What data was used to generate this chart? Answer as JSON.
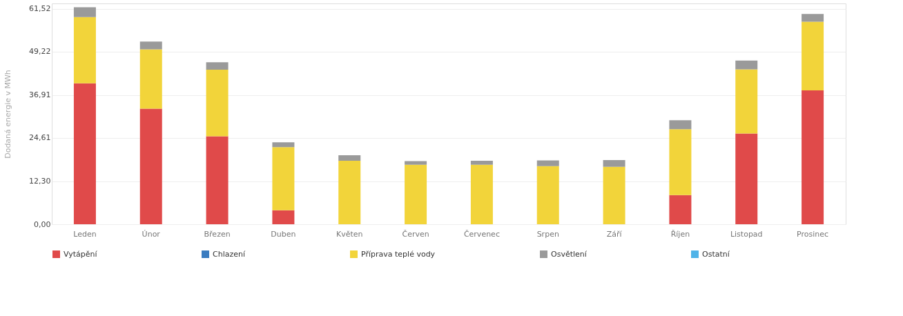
{
  "chart_data": {
    "type": "bar",
    "stacked": true,
    "ylabel": "Dodaná energie v MWh",
    "categories": [
      "Leden",
      "Únor",
      "Březen",
      "Duben",
      "Květen",
      "Červen",
      "Červenec",
      "Srpen",
      "Září",
      "Říjen",
      "Listopad",
      "Prosinec"
    ],
    "series": [
      {
        "name": "Vytápění",
        "color": "#e04a4a",
        "values": [
          40.2,
          33.0,
          25.1,
          4.0,
          0,
          0,
          0,
          0,
          0,
          8.3,
          25.9,
          38.2
        ]
      },
      {
        "name": "Chlazení",
        "color": "#3a7cc0",
        "values": [
          0,
          0,
          0,
          0,
          0,
          0,
          0,
          0,
          0,
          0,
          0,
          0
        ]
      },
      {
        "name": "Příprava teplé vody",
        "color": "#f2d43a",
        "values": [
          18.9,
          16.9,
          19.0,
          18.0,
          18.1,
          17.0,
          17.0,
          16.6,
          16.4,
          18.8,
          18.3,
          19.6
        ]
      },
      {
        "name": "Osvětlení",
        "color": "#9a9a9a",
        "values": [
          2.8,
          2.2,
          2.1,
          1.4,
          1.6,
          1.0,
          1.1,
          1.6,
          1.9,
          2.6,
          2.5,
          2.2
        ]
      },
      {
        "name": "Ostatní",
        "color": "#4fb3e8",
        "values": [
          0,
          0,
          0,
          0,
          0,
          0,
          0,
          0,
          0,
          0,
          0,
          0
        ]
      }
    ],
    "ylim": [
      0,
      63
    ],
    "yticks": [
      {
        "value": 0,
        "label": "0,00"
      },
      {
        "value": 12.3,
        "label": "12,30"
      },
      {
        "value": 24.61,
        "label": "24,61"
      },
      {
        "value": 36.91,
        "label": "36,91"
      },
      {
        "value": 49.22,
        "label": "49,22"
      },
      {
        "value": 61.52,
        "label": "61,52"
      }
    ],
    "grid": "y",
    "legend": "bottom"
  }
}
